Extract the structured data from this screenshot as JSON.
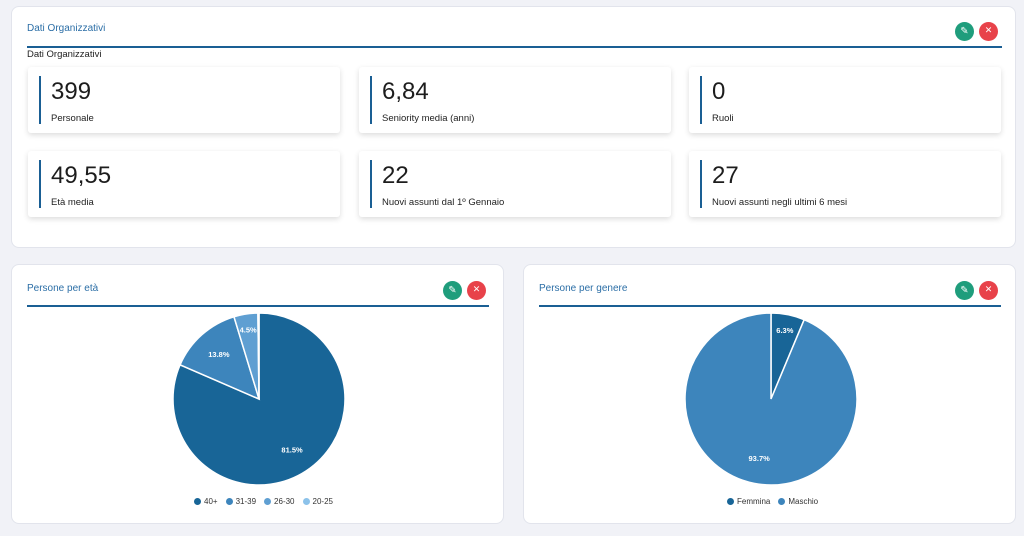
{
  "org": {
    "title": "Dati Organizzativi",
    "subtitle": "Dati Organizzativi",
    "edit_icon": "pencil-icon",
    "close_icon": "close-icon",
    "stats": [
      {
        "value": "399",
        "label": "Personale"
      },
      {
        "value": "6,84",
        "label": "Seniority media (anni)"
      },
      {
        "value": "0",
        "label": "Ruoli"
      },
      {
        "value": "49,55",
        "label": "Età media"
      },
      {
        "value": "22",
        "label": "Nuovi assunti dal 1º Gennaio"
      },
      {
        "value": "27",
        "label": "Nuovi assunti negli ultimi 6 mesi"
      }
    ]
  },
  "age_card": {
    "title": "Persone per età",
    "chart_data": {
      "type": "pie",
      "categories": [
        "40+",
        "31-39",
        "26-30",
        "20-25"
      ],
      "values": [
        81.5,
        13.8,
        4.5,
        0.2
      ],
      "labels": [
        "81.5%",
        "13.8%",
        "4.5%",
        ""
      ],
      "colors": [
        "#186597",
        "#3d85bc",
        "#5f9fd2",
        "#8cc2ea"
      ],
      "legend": "bottom"
    }
  },
  "gender_card": {
    "title": "Persone per genere",
    "chart_data": {
      "type": "pie",
      "categories": [
        "Femmina",
        "Maschio"
      ],
      "values": [
        6.3,
        93.7
      ],
      "labels": [
        "6.3%",
        "93.7%"
      ],
      "colors": [
        "#186597",
        "#3d85bc"
      ],
      "legend": "bottom"
    }
  },
  "icons": {
    "edit": "✎",
    "close": "✕"
  }
}
